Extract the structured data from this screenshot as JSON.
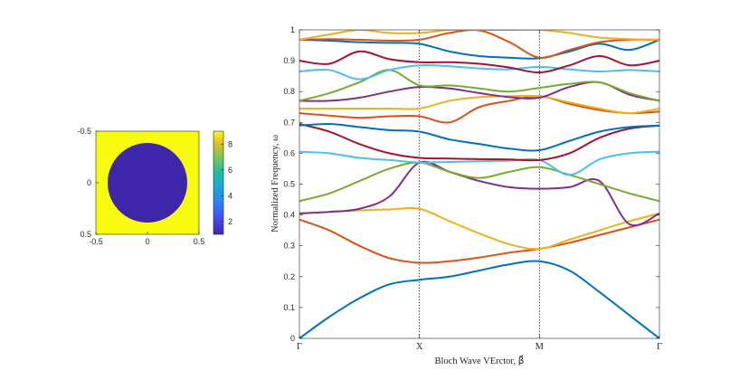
{
  "chart_data": [
    {
      "type": "heatmap",
      "description_visible": "unit cell permittivity map",
      "x_ticks": [
        "-0.5",
        "0",
        "0.5"
      ],
      "y_ticks": [
        "-0.5",
        "0",
        "0.5"
      ],
      "xlim": [
        -0.5,
        0.5
      ],
      "ylim": [
        -0.5,
        0.5
      ],
      "field": {
        "background_value": 9,
        "inclusion_value": 1,
        "inclusion_radius": 0.38
      },
      "colorbar": {
        "range": [
          1,
          9
        ],
        "ticks": [
          "2",
          "4",
          "6",
          "8"
        ]
      }
    },
    {
      "type": "line",
      "xlabel": "Bloch Wave VErctor, β⃗",
      "ylabel": "Normalized Frequency, ω",
      "x_tick_labels": [
        "Γ",
        "X",
        "M",
        "Γ"
      ],
      "x_tick_positions": [
        0,
        1,
        2,
        3
      ],
      "ylim": [
        0,
        1
      ],
      "y_ticks": [
        "0",
        "0.1",
        "0.2",
        "0.3",
        "0.4",
        "0.5",
        "0.6",
        "0.7",
        "0.8",
        "0.9",
        "1"
      ],
      "vertical_reference_lines": [
        1,
        2
      ],
      "series": [
        {
          "color": "#0072BD",
          "points": [
            [
              0,
              0
            ],
            [
              0.25,
              0.07
            ],
            [
              0.5,
              0.13
            ],
            [
              0.75,
              0.175
            ],
            [
              1,
              0.19
            ],
            [
              1.25,
              0.2
            ],
            [
              1.5,
              0.22
            ],
            [
              1.75,
              0.24
            ],
            [
              2,
              0.25
            ],
            [
              2.25,
              0.22
            ],
            [
              2.5,
              0.15
            ],
            [
              2.75,
              0.075
            ],
            [
              3,
              0
            ]
          ]
        },
        {
          "color": "#D95319",
          "points": [
            [
              0,
              0.385
            ],
            [
              0.25,
              0.35
            ],
            [
              0.5,
              0.3
            ],
            [
              0.75,
              0.26
            ],
            [
              1,
              0.245
            ],
            [
              1.25,
              0.25
            ],
            [
              1.5,
              0.262
            ],
            [
              1.75,
              0.278
            ],
            [
              2,
              0.29
            ],
            [
              2.25,
              0.31
            ],
            [
              2.5,
              0.335
            ],
            [
              2.75,
              0.36
            ],
            [
              3,
              0.385
            ]
          ]
        },
        {
          "color": "#EDB120",
          "points": [
            [
              0,
              0.405
            ],
            [
              0.25,
              0.41
            ],
            [
              0.5,
              0.415
            ],
            [
              0.75,
              0.418
            ],
            [
              1,
              0.42
            ],
            [
              1.25,
              0.38
            ],
            [
              1.5,
              0.34
            ],
            [
              1.75,
              0.305
            ],
            [
              2,
              0.29
            ],
            [
              2.25,
              0.32
            ],
            [
              2.5,
              0.35
            ],
            [
              2.75,
              0.38
            ],
            [
              3,
              0.405
            ]
          ]
        },
        {
          "color": "#7E2F8E",
          "points": [
            [
              0,
              0.405
            ],
            [
              0.25,
              0.41
            ],
            [
              0.5,
              0.42
            ],
            [
              0.75,
              0.46
            ],
            [
              1,
              0.57
            ],
            [
              1.25,
              0.54
            ],
            [
              1.5,
              0.51
            ],
            [
              1.75,
              0.49
            ],
            [
              2,
              0.485
            ],
            [
              2.25,
              0.49
            ],
            [
              2.5,
              0.51
            ],
            [
              2.75,
              0.37
            ],
            [
              3,
              0.405
            ]
          ]
        },
        {
          "color": "#77AC30",
          "points": [
            [
              0,
              0.445
            ],
            [
              0.25,
              0.47
            ],
            [
              0.5,
              0.51
            ],
            [
              0.75,
              0.55
            ],
            [
              1,
              0.57
            ],
            [
              1.25,
              0.54
            ],
            [
              1.5,
              0.52
            ],
            [
              1.75,
              0.54
            ],
            [
              2,
              0.555
            ],
            [
              2.25,
              0.53
            ],
            [
              2.5,
              0.5
            ],
            [
              2.75,
              0.47
            ],
            [
              3,
              0.445
            ]
          ]
        },
        {
          "color": "#4DBEEE",
          "points": [
            [
              0,
              0.605
            ],
            [
              0.25,
              0.6
            ],
            [
              0.5,
              0.585
            ],
            [
              0.75,
              0.578
            ],
            [
              1,
              0.57
            ],
            [
              1.25,
              0.572
            ],
            [
              1.5,
              0.574
            ],
            [
              1.75,
              0.576
            ],
            [
              2,
              0.578
            ],
            [
              2.25,
              0.53
            ],
            [
              2.5,
              0.58
            ],
            [
              2.75,
              0.6
            ],
            [
              3,
              0.605
            ]
          ]
        },
        {
          "color": "#A2142F",
          "points": [
            [
              0,
              0.695
            ],
            [
              0.25,
              0.67
            ],
            [
              0.5,
              0.63
            ],
            [
              0.75,
              0.6
            ],
            [
              1,
              0.585
            ],
            [
              1.25,
              0.583
            ],
            [
              1.5,
              0.581
            ],
            [
              1.75,
              0.58
            ],
            [
              2,
              0.578
            ],
            [
              2.25,
              0.6
            ],
            [
              2.5,
              0.65
            ],
            [
              2.75,
              0.68
            ],
            [
              3,
              0.69
            ]
          ]
        },
        {
          "color": "#0072BD",
          "points": [
            [
              0,
              0.69
            ],
            [
              0.25,
              0.695
            ],
            [
              0.5,
              0.685
            ],
            [
              0.75,
              0.675
            ],
            [
              1,
              0.67
            ],
            [
              1.25,
              0.645
            ],
            [
              1.5,
              0.63
            ],
            [
              1.75,
              0.615
            ],
            [
              2,
              0.61
            ],
            [
              2.25,
              0.64
            ],
            [
              2.5,
              0.67
            ],
            [
              2.75,
              0.685
            ],
            [
              3,
              0.69
            ]
          ]
        },
        {
          "color": "#D95319",
          "points": [
            [
              0,
              0.73
            ],
            [
              0.25,
              0.722
            ],
            [
              0.5,
              0.715
            ],
            [
              0.75,
              0.72
            ],
            [
              1,
              0.72
            ],
            [
              1.25,
              0.7
            ],
            [
              1.5,
              0.75
            ],
            [
              1.75,
              0.77
            ],
            [
              2,
              0.785
            ],
            [
              2.25,
              0.76
            ],
            [
              2.5,
              0.74
            ],
            [
              2.75,
              0.73
            ],
            [
              3,
              0.735
            ]
          ]
        },
        {
          "color": "#EDB120",
          "points": [
            [
              0,
              0.745
            ],
            [
              0.25,
              0.745
            ],
            [
              0.5,
              0.745
            ],
            [
              0.75,
              0.745
            ],
            [
              1,
              0.745
            ],
            [
              1.25,
              0.77
            ],
            [
              1.5,
              0.782
            ],
            [
              1.75,
              0.785
            ],
            [
              2,
              0.785
            ],
            [
              2.25,
              0.765
            ],
            [
              2.5,
              0.745
            ],
            [
              2.75,
              0.73
            ],
            [
              3,
              0.745
            ]
          ]
        },
        {
          "color": "#7E2F8E",
          "points": [
            [
              0,
              0.77
            ],
            [
              0.25,
              0.77
            ],
            [
              0.5,
              0.78
            ],
            [
              0.75,
              0.8
            ],
            [
              1,
              0.815
            ],
            [
              1.25,
              0.81
            ],
            [
              1.5,
              0.795
            ],
            [
              1.75,
              0.782
            ],
            [
              2,
              0.78
            ],
            [
              2.25,
              0.815
            ],
            [
              2.5,
              0.83
            ],
            [
              2.75,
              0.79
            ],
            [
              3,
              0.77
            ]
          ]
        },
        {
          "color": "#77AC30",
          "points": [
            [
              0,
              0.77
            ],
            [
              0.25,
              0.795
            ],
            [
              0.5,
              0.83
            ],
            [
              0.75,
              0.87
            ],
            [
              1,
              0.82
            ],
            [
              1.25,
              0.82
            ],
            [
              1.5,
              0.81
            ],
            [
              1.75,
              0.8
            ],
            [
              2,
              0.812
            ],
            [
              2.25,
              0.825
            ],
            [
              2.5,
              0.83
            ],
            [
              2.75,
              0.795
            ],
            [
              3,
              0.77
            ]
          ]
        },
        {
          "color": "#4DBEEE",
          "points": [
            [
              0,
              0.865
            ],
            [
              0.25,
              0.87
            ],
            [
              0.5,
              0.84
            ],
            [
              0.75,
              0.87
            ],
            [
              1,
              0.885
            ],
            [
              1.25,
              0.882
            ],
            [
              1.5,
              0.875
            ],
            [
              1.75,
              0.872
            ],
            [
              2,
              0.88
            ],
            [
              2.25,
              0.872
            ],
            [
              2.5,
              0.865
            ],
            [
              2.75,
              0.87
            ],
            [
              3,
              0.865
            ]
          ]
        },
        {
          "color": "#A2142F",
          "points": [
            [
              0,
              0.9
            ],
            [
              0.25,
              0.89
            ],
            [
              0.5,
              0.93
            ],
            [
              0.75,
              0.905
            ],
            [
              1,
              0.895
            ],
            [
              1.25,
              0.895
            ],
            [
              1.5,
              0.89
            ],
            [
              1.75,
              0.878
            ],
            [
              2,
              0.862
            ],
            [
              2.25,
              0.885
            ],
            [
              2.5,
              0.915
            ],
            [
              2.75,
              0.885
            ],
            [
              3,
              0.9
            ]
          ]
        },
        {
          "color": "#0072BD",
          "points": [
            [
              0,
              0.968
            ],
            [
              0.25,
              0.965
            ],
            [
              0.5,
              0.96
            ],
            [
              0.75,
              0.958
            ],
            [
              1,
              0.955
            ],
            [
              1.25,
              0.93
            ],
            [
              1.5,
              0.915
            ],
            [
              1.75,
              0.91
            ],
            [
              2,
              0.908
            ],
            [
              2.25,
              0.93
            ],
            [
              2.5,
              0.955
            ],
            [
              2.75,
              0.935
            ],
            [
              3,
              0.968
            ]
          ]
        },
        {
          "color": "#D95319",
          "points": [
            [
              0,
              0.968
            ],
            [
              0.25,
              0.97
            ],
            [
              0.5,
              0.968
            ],
            [
              0.75,
              0.965
            ],
            [
              1,
              0.968
            ],
            [
              1.25,
              0.99
            ],
            [
              1.5,
              0.998
            ],
            [
              1.75,
              0.96
            ],
            [
              2,
              0.91
            ],
            [
              2.25,
              0.935
            ],
            [
              2.5,
              0.96
            ],
            [
              2.75,
              0.968
            ],
            [
              3,
              0.968
            ]
          ]
        },
        {
          "color": "#EDB120",
          "points": [
            [
              0,
              0.968
            ],
            [
              0.25,
              0.985
            ],
            [
              0.5,
              1.0
            ],
            [
              0.75,
              0.99
            ],
            [
              1,
              0.99
            ],
            [
              1.25,
              1.0
            ],
            [
              1.5,
              1.0
            ],
            [
              1.75,
              1.0
            ],
            [
              2,
              1.0
            ],
            [
              2.25,
              0.99
            ],
            [
              2.5,
              0.975
            ],
            [
              2.75,
              0.97
            ],
            [
              3,
              0.968
            ]
          ]
        }
      ]
    }
  ]
}
